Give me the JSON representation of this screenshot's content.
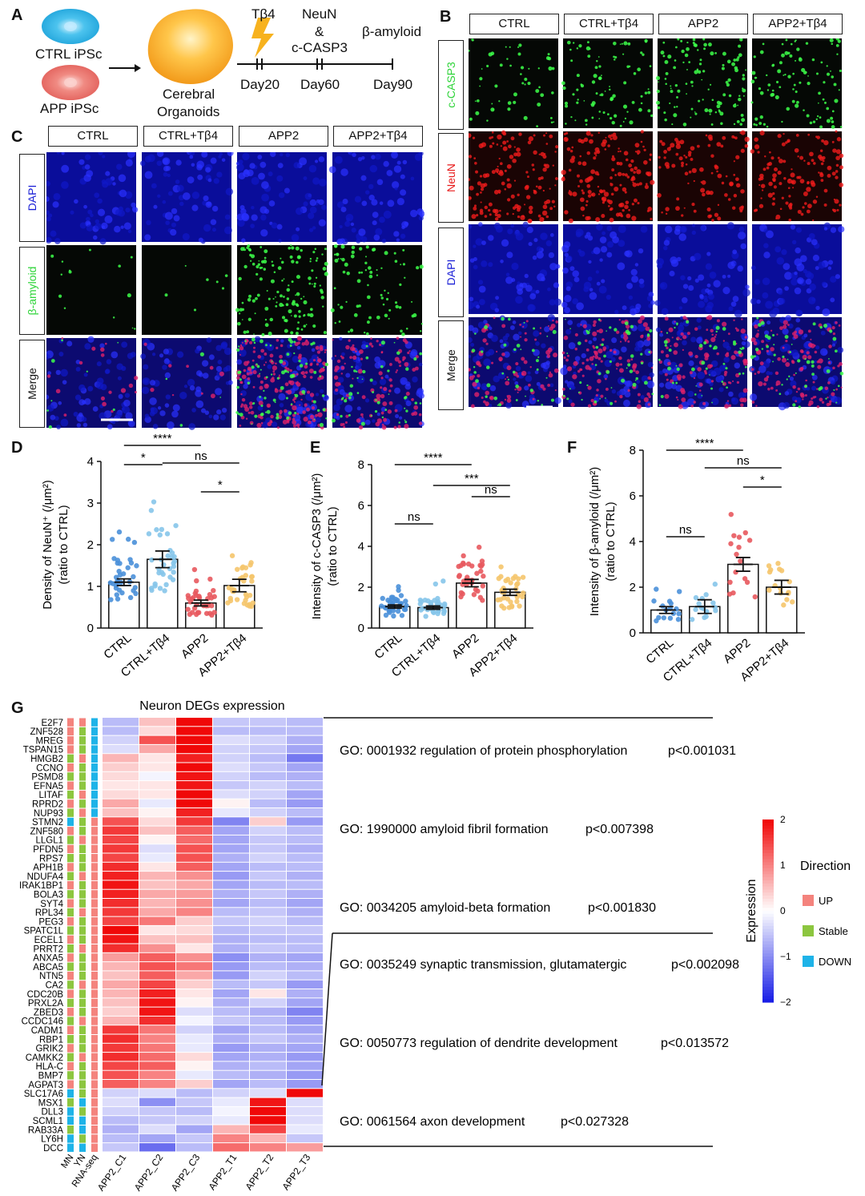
{
  "panelA": {
    "label": "A",
    "ctrl_ipsc": "CTRL iPSc",
    "app_ipsc": "APP iPSc",
    "organoid_l1": "Cerebral",
    "organoid_l2": "Organoids",
    "tb4": "Tβ4",
    "neun": "NeuN",
    "amp": "&",
    "ccasp3": "c-CASP3",
    "bamyloid": "β-amyloid",
    "day20": "Day20",
    "day60": "Day60",
    "day90": "Day90"
  },
  "panelB": {
    "label": "B",
    "cols": [
      "CTRL",
      "CTRL+Tβ4",
      "APP2",
      "APP2+Tβ4"
    ],
    "rows": [
      "c-CASP3",
      "NeuN",
      "DAPI",
      "Merge"
    ]
  },
  "panelC": {
    "label": "C",
    "cols": [
      "CTRL",
      "CTRL+Tβ4",
      "APP2",
      "APP2+Tβ4"
    ],
    "rows": [
      "DAPI",
      "β-amyloid",
      "Merge"
    ]
  },
  "colors": {
    "ctrl": "#4a90d9",
    "ctrl_tb4": "#86c5ea",
    "app2": "#e8595e",
    "app2_tb4": "#f5c56b",
    "dapi": "#1a1fd6",
    "green": "#2fd43a",
    "red": "#e81a1a"
  },
  "chart_data": [
    {
      "type": "bar",
      "panel": "D",
      "ylabel": "Density of NeuN⁺ (/μm²)",
      "ylabel2": "(ratio to CTRL)",
      "categories": [
        "CTRL",
        "CTRL+Tβ4",
        "APP2",
        "APP2+Tβ4"
      ],
      "values": [
        1.1,
        1.65,
        0.6,
        1.02
      ],
      "errors": [
        0.08,
        0.2,
        0.07,
        0.15
      ],
      "ylim": [
        0,
        4
      ],
      "yticks": [
        "0",
        "1",
        "2",
        "3",
        "4"
      ],
      "significance": [
        {
          "pair": [
            0,
            2
          ],
          "label": "****"
        },
        {
          "pair": [
            0,
            1
          ],
          "label": "*"
        },
        {
          "pair": [
            1,
            3
          ],
          "label": "ns"
        },
        {
          "pair": [
            2,
            3
          ],
          "label": "*"
        }
      ]
    },
    {
      "type": "bar",
      "panel": "E",
      "ylabel": "Intensity of c-CASP3 (/μm²)",
      "ylabel2": "(ratio to CTRL)",
      "categories": [
        "CTRL",
        "CTRL+Tβ4",
        "APP2",
        "APP2+Tβ4"
      ],
      "values": [
        1.05,
        1.0,
        2.2,
        1.75
      ],
      "errors": [
        0.08,
        0.08,
        0.18,
        0.15
      ],
      "ylim": [
        0,
        8
      ],
      "yticks": [
        "0",
        "2",
        "4",
        "6",
        "8"
      ],
      "significance": [
        {
          "pair": [
            0,
            2
          ],
          "label": "****"
        },
        {
          "pair": [
            0,
            1
          ],
          "label": "ns"
        },
        {
          "pair": [
            1,
            3
          ],
          "label": "***"
        },
        {
          "pair": [
            2,
            3
          ],
          "label": "ns"
        }
      ]
    },
    {
      "type": "bar",
      "panel": "F",
      "ylabel": "Intensity of β-amyloid (/μm²)",
      "ylabel2": "(ratio to CTRL)",
      "categories": [
        "CTRL",
        "CTRL+Tβ4",
        "APP2",
        "APP2+Tβ4"
      ],
      "values": [
        1.0,
        1.15,
        3.0,
        2.0
      ],
      "errors": [
        0.15,
        0.3,
        0.3,
        0.3
      ],
      "ylim": [
        0,
        8
      ],
      "yticks": [
        "0",
        "2",
        "4",
        "6",
        "8"
      ],
      "significance": [
        {
          "pair": [
            0,
            2
          ],
          "label": "****"
        },
        {
          "pair": [
            0,
            1
          ],
          "label": "ns"
        },
        {
          "pair": [
            1,
            3
          ],
          "label": "ns"
        },
        {
          "pair": [
            2,
            3
          ],
          "label": "*"
        }
      ]
    },
    {
      "type": "heatmap",
      "panel": "G",
      "title": "Neuron DEGs expression",
      "genes": [
        "E2F7",
        "ZNF528",
        "MREG",
        "TSPAN15",
        "HMGB2",
        "CCNO",
        "PSMD8",
        "EFNA5",
        "LITAF",
        "RPRD2",
        "NUP93",
        "STMN2",
        "ZNF580",
        "LLGL1",
        "PFDN5",
        "RPS7",
        "APH1B",
        "NDUFA4",
        "IRAK1BP1",
        "BOLA3",
        "SYT4",
        "RPL34",
        "PEG3",
        "SPATC1L",
        "ECEL1",
        "PRRT2",
        "ANXA5",
        "ABCA5",
        "NTN5",
        "CA2",
        "CDC20B",
        "PRXL2A",
        "ZBED3",
        "CCDC146",
        "CADM1",
        "RBP1",
        "GRIK2",
        "CAMKK2",
        "HLA-C",
        "BMP7",
        "AGPAT3",
        "SLC17A6",
        "MSX1",
        "DLL3",
        "SCML1",
        "RAB33A",
        "LY6H",
        "DCC"
      ],
      "columns": [
        "APP2_C1",
        "APP2_C2",
        "APP2_C3",
        "APP2_T1",
        "APP2_T2",
        "APP2_T3"
      ],
      "direction_cols": [
        "MN",
        "YN",
        "RNA-seq"
      ],
      "values": [
        [
          -0.6,
          0.5,
          2.2,
          -0.5,
          -0.5,
          -0.6
        ],
        [
          -0.6,
          0.3,
          2.1,
          -0.6,
          -0.6,
          -0.6
        ],
        [
          -0.4,
          1.4,
          2.0,
          -0.3,
          -0.4,
          -0.7
        ],
        [
          -0.3,
          0.7,
          2.0,
          -0.4,
          -0.5,
          -0.8
        ],
        [
          0.6,
          0.2,
          1.8,
          -0.4,
          -0.6,
          -1.2
        ],
        [
          0.4,
          0.2,
          2.0,
          -0.3,
          -0.5,
          -0.8
        ],
        [
          0.3,
          -0.1,
          1.9,
          -0.4,
          -0.6,
          -0.7
        ],
        [
          0.2,
          0.2,
          1.9,
          -0.5,
          -0.4,
          -0.6
        ],
        [
          0.3,
          0.2,
          2.0,
          -0.3,
          -0.4,
          -0.8
        ],
        [
          0.7,
          -0.2,
          2.1,
          0.1,
          -0.6,
          -0.9
        ],
        [
          0.5,
          0.1,
          1.8,
          -0.2,
          -0.4,
          -0.6
        ],
        [
          1.4,
          0.3,
          1.6,
          -1.1,
          0.4,
          -0.9
        ],
        [
          1.6,
          0.5,
          1.3,
          -0.8,
          -0.4,
          -0.6
        ],
        [
          1.5,
          0.1,
          1.2,
          -0.8,
          -0.5,
          -0.6
        ],
        [
          1.6,
          -0.3,
          1.4,
          -0.8,
          -0.5,
          -0.7
        ],
        [
          1.5,
          -0.2,
          1.4,
          -0.7,
          -0.4,
          -0.6
        ],
        [
          1.7,
          0.2,
          1.3,
          -0.8,
          -0.6,
          -0.6
        ],
        [
          1.8,
          0.6,
          0.9,
          -0.9,
          -0.5,
          -0.7
        ],
        [
          1.9,
          0.5,
          0.7,
          -0.8,
          -0.6,
          -0.6
        ],
        [
          1.8,
          0.7,
          0.8,
          -0.7,
          -0.5,
          -0.7
        ],
        [
          1.7,
          0.6,
          0.9,
          -0.8,
          -0.6,
          -0.8
        ],
        [
          1.6,
          0.7,
          1.0,
          -0.6,
          -0.5,
          -0.7
        ],
        [
          1.5,
          1.1,
          0.4,
          -0.5,
          -0.4,
          -0.6
        ],
        [
          2.0,
          0.2,
          0.3,
          -0.6,
          -0.5,
          -0.5
        ],
        [
          1.9,
          0.5,
          0.5,
          -0.7,
          -0.6,
          -0.6
        ],
        [
          1.7,
          0.9,
          0.2,
          -0.7,
          -0.5,
          -0.6
        ],
        [
          0.8,
          1.3,
          0.9,
          -1.0,
          -0.7,
          -0.8
        ],
        [
          0.6,
          1.4,
          1.1,
          -0.9,
          -0.6,
          -0.7
        ],
        [
          0.5,
          1.3,
          0.7,
          -0.9,
          -0.4,
          -0.6
        ],
        [
          0.7,
          1.5,
          0.4,
          -0.6,
          -0.5,
          -0.9
        ],
        [
          0.6,
          1.8,
          0.2,
          -0.8,
          0.2,
          -0.7
        ],
        [
          0.5,
          1.9,
          0.1,
          -0.7,
          -0.4,
          -0.8
        ],
        [
          0.4,
          1.9,
          -0.3,
          -0.6,
          -0.7,
          -1.1
        ],
        [
          0.6,
          1.7,
          -0.1,
          -0.5,
          -0.6,
          -0.9
        ],
        [
          1.6,
          1.1,
          -0.4,
          -0.8,
          -0.6,
          -0.8
        ],
        [
          1.7,
          1.0,
          -0.2,
          -0.7,
          -0.5,
          -0.7
        ],
        [
          1.6,
          1.1,
          -0.2,
          -0.9,
          -0.7,
          -0.8
        ],
        [
          1.7,
          1.2,
          0.3,
          -0.8,
          -0.7,
          -0.9
        ],
        [
          1.5,
          1.3,
          0.1,
          -0.7,
          -0.6,
          -0.8
        ],
        [
          1.4,
          1.0,
          -0.2,
          -0.6,
          -0.7,
          -0.9
        ],
        [
          1.3,
          1.0,
          0.4,
          -0.8,
          -0.6,
          -0.9
        ],
        [
          -0.4,
          -0.3,
          -0.6,
          -0.4,
          -0.3,
          2.1
        ],
        [
          -0.3,
          -1.0,
          -0.5,
          -0.2,
          1.9,
          -0.3
        ],
        [
          -0.4,
          -0.5,
          -0.6,
          -0.1,
          2.1,
          -0.3
        ],
        [
          -0.6,
          -0.5,
          -0.4,
          -0.2,
          2.1,
          -0.3
        ],
        [
          -0.7,
          -0.3,
          -0.8,
          0.6,
          1.5,
          -0.2
        ],
        [
          -0.6,
          -0.8,
          -0.5,
          1.0,
          0.6,
          -0.5
        ],
        [
          -0.5,
          -1.3,
          -0.6,
          1.2,
          1.0,
          0.8
        ]
      ],
      "direction": [
        [
          "UP",
          "UP",
          "DOWN"
        ],
        [
          "UP",
          "Stable",
          "DOWN"
        ],
        [
          "UP",
          "Stable",
          "DOWN"
        ],
        [
          "UP",
          "Stable",
          "DOWN"
        ],
        [
          "Stable",
          "UP",
          "DOWN"
        ],
        [
          "UP",
          "Stable",
          "DOWN"
        ],
        [
          "Stable",
          "Stable",
          "DOWN"
        ],
        [
          "UP",
          "Stable",
          "DOWN"
        ],
        [
          "Stable",
          "UP",
          "DOWN"
        ],
        [
          "UP",
          "Stable",
          "DOWN"
        ],
        [
          "Stable",
          "UP",
          "DOWN"
        ],
        [
          "DOWN",
          "Stable",
          "UP"
        ],
        [
          "UP",
          "Stable",
          "UP"
        ],
        [
          "Stable",
          "UP",
          "UP"
        ],
        [
          "UP",
          "Stable",
          "UP"
        ],
        [
          "Stable",
          "Stable",
          "UP"
        ],
        [
          "UP",
          "Stable",
          "UP"
        ],
        [
          "Stable",
          "UP",
          "UP"
        ],
        [
          "UP",
          "Stable",
          "UP"
        ],
        [
          "Stable",
          "Stable",
          "UP"
        ],
        [
          "UP",
          "Stable",
          "UP"
        ],
        [
          "Stable",
          "UP",
          "UP"
        ],
        [
          "UP",
          "Stable",
          "UP"
        ],
        [
          "Stable",
          "Stable",
          "UP"
        ],
        [
          "UP",
          "Stable",
          "UP"
        ],
        [
          "Stable",
          "UP",
          "UP"
        ],
        [
          "UP",
          "Stable",
          "UP"
        ],
        [
          "Stable",
          "Stable",
          "UP"
        ],
        [
          "UP",
          "Stable",
          "UP"
        ],
        [
          "Stable",
          "UP",
          "UP"
        ],
        [
          "UP",
          "Stable",
          "UP"
        ],
        [
          "Stable",
          "Stable",
          "UP"
        ],
        [
          "UP",
          "Stable",
          "UP"
        ],
        [
          "Stable",
          "UP",
          "UP"
        ],
        [
          "UP",
          "Stable",
          "UP"
        ],
        [
          "Stable",
          "Stable",
          "UP"
        ],
        [
          "UP",
          "Stable",
          "UP"
        ],
        [
          "Stable",
          "UP",
          "UP"
        ],
        [
          "UP",
          "Stable",
          "UP"
        ],
        [
          "Stable",
          "Stable",
          "UP"
        ],
        [
          "UP",
          "Stable",
          "UP"
        ],
        [
          "DOWN",
          "Stable",
          "UP"
        ],
        [
          "Stable",
          "DOWN",
          "UP"
        ],
        [
          "DOWN",
          "Stable",
          "UP"
        ],
        [
          "DOWN",
          "DOWN",
          "UP"
        ],
        [
          "Stable",
          "DOWN",
          "UP"
        ],
        [
          "DOWN",
          "Stable",
          "UP"
        ],
        [
          "DOWN",
          "DOWN",
          "UP"
        ]
      ],
      "colorbar": {
        "label": "Expression",
        "ticks": [
          "2",
          "1",
          "0",
          "−1",
          "−2"
        ],
        "range": [
          -2,
          2
        ]
      },
      "legend": {
        "title": "Direction",
        "items": [
          "UP",
          "Stable",
          "DOWN"
        ],
        "colors": [
          "#f4837d",
          "#8cc63f",
          "#1eb3e8"
        ]
      },
      "go_terms": [
        {
          "term": "GO: 0001932 regulation of protein phosphorylation",
          "p": "p<0.001031"
        },
        {
          "term": "GO: 1990000 amyloid fibril formation",
          "p": "p<0.007398"
        },
        {
          "term": "GO: 0034205 amyloid-beta formation",
          "p": "p<0.001830"
        },
        {
          "term": "GO: 0035249 synaptic transmission, glutamatergic",
          "p": "p<0.002098"
        },
        {
          "term": "GO: 0050773 regulation of dendrite development",
          "p": "p<0.013572"
        },
        {
          "term": "GO: 0061564 axon development",
          "p": "p<0.027328"
        }
      ]
    }
  ]
}
